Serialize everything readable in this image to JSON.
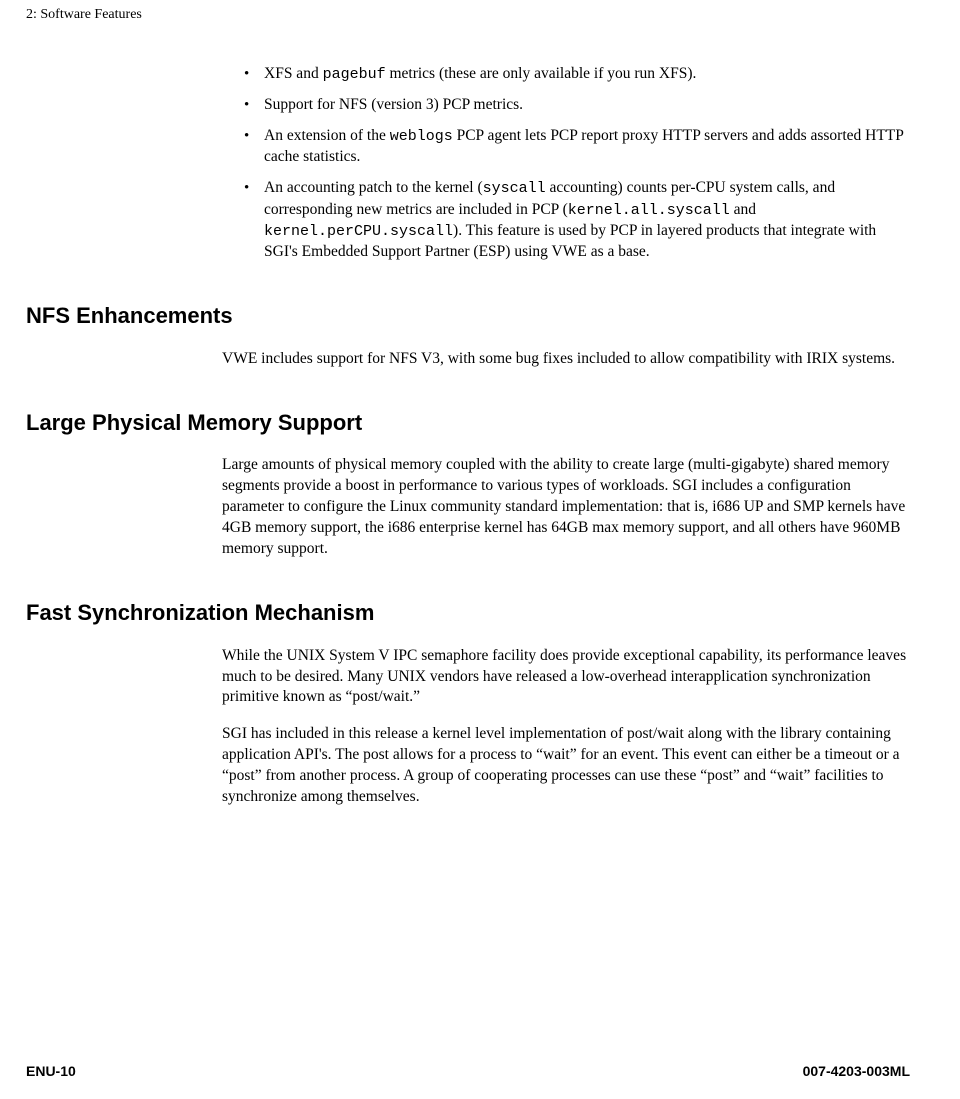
{
  "header": "2: Software Features",
  "bullets": {
    "b1": {
      "pre": "XFS and ",
      "mono": "pagebuf",
      "post": " metrics (these are only available if you run XFS)."
    },
    "b2": "Support for NFS (version 3) PCP metrics.",
    "b3": {
      "pre": "An extension of the ",
      "mono": "weblogs",
      "post": " PCP agent lets PCP report proxy HTTP servers and adds assorted HTTP cache statistics."
    },
    "b4": {
      "p1": "An accounting patch to the kernel (",
      "m1": "syscall",
      "p2": " accounting) counts per-CPU system calls, and corresponding new metrics are included in PCP (",
      "m2": "kernel.all.syscall",
      "p3": " and ",
      "m3": "kernel.perCPU.syscall",
      "p4": "). This feature is used by PCP in layered products that integrate with SGI's Embedded Support Partner (ESP) using VWE as a base."
    }
  },
  "sections": {
    "nfs": {
      "title": "NFS Enhancements",
      "body": "VWE includes support for NFS V3, with some bug fixes included to allow compatibility with IRIX systems."
    },
    "mem": {
      "title": "Large Physical Memory Support",
      "body": "Large amounts of physical memory coupled with the ability to create large (multi-gigabyte) shared memory segments provide a boost in performance to various types of workloads. SGI includes a configuration parameter to configure the Linux community standard implementation: that is, i686 UP and SMP kernels have 4GB memory support, the i686 enterprise kernel has 64GB max memory support, and all others have 960MB memory support."
    },
    "sync": {
      "title": "Fast Synchronization Mechanism",
      "p1": "While the UNIX System V IPC semaphore facility does provide exceptional capability, its performance leaves much to be desired. Many UNIX vendors have released a low-overhead interapplication synchronization primitive known as “post/wait.”",
      "p2": "SGI has included in this release a kernel level implementation of post/wait along with the library containing application API's. The post allows for a process to “wait” for an event. This event can either be a timeout or a “post” from another process. A group of cooperating processes can use these “post” and “wait” facilities to synchronize among themselves."
    }
  },
  "footer": {
    "left": "ENU-10",
    "right": "007-4203-003ML"
  }
}
